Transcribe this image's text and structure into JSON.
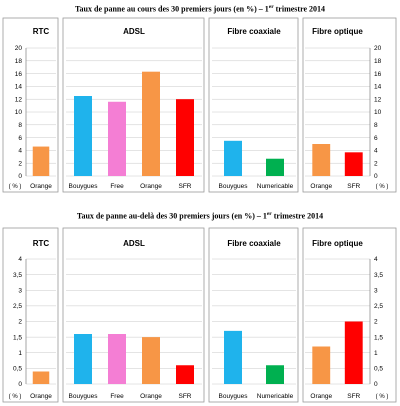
{
  "chart_data": [
    {
      "type": "bar",
      "title_main": "Taux de panne au cours des 30 premiers jours (en %) – 1",
      "title_sup": "er",
      "title_end": " trimestre 2014",
      "ylim": [
        0,
        20
      ],
      "yticks": [
        "0",
        "2",
        "4",
        "6",
        "8",
        "10",
        "12",
        "14",
        "16",
        "18",
        "20"
      ],
      "unit": "( % )",
      "panels": [
        {
          "title": "RTC",
          "categories": [
            "Orange"
          ],
          "values": [
            4.6
          ],
          "colors": [
            "#f79646"
          ]
        },
        {
          "title": "ADSL",
          "categories": [
            "Bouygues",
            "Free",
            "Orange",
            "SFR"
          ],
          "values": [
            12.5,
            11.6,
            16.3,
            12.0
          ],
          "colors": [
            "#1fb3ec",
            "#f47ed4",
            "#f79646",
            "#ff0000"
          ]
        },
        {
          "title": "Fibre coaxiale",
          "categories": [
            "Bouygues",
            "Numericable"
          ],
          "values": [
            5.5,
            2.7
          ],
          "colors": [
            "#1fb3ec",
            "#00b050"
          ]
        },
        {
          "title": "Fibre optique",
          "categories": [
            "Orange",
            "SFR"
          ],
          "values": [
            5.0,
            3.7
          ],
          "colors": [
            "#f79646",
            "#ff0000"
          ]
        }
      ]
    },
    {
      "type": "bar",
      "title_main": "Taux de panne au-delà des 30 premiers jours (en %) – 1",
      "title_sup": "er",
      "title_end": " trimestre 2014",
      "ylim": [
        0,
        4
      ],
      "yticks": [
        "0",
        "0,5",
        "1",
        "1,5",
        "2",
        "2,5",
        "3",
        "3,5",
        "4"
      ],
      "unit": "( % )",
      "panels": [
        {
          "title": "RTC",
          "categories": [
            "Orange"
          ],
          "values": [
            0.4
          ],
          "colors": [
            "#f79646"
          ]
        },
        {
          "title": "ADSL",
          "categories": [
            "Bouygues",
            "Free",
            "Orange",
            "SFR"
          ],
          "values": [
            1.6,
            1.6,
            1.5,
            0.6
          ],
          "colors": [
            "#1fb3ec",
            "#f47ed4",
            "#f79646",
            "#ff0000"
          ]
        },
        {
          "title": "Fibre coaxiale",
          "categories": [
            "Bouygues",
            "Numericable"
          ],
          "values": [
            1.7,
            0.6
          ],
          "colors": [
            "#1fb3ec",
            "#00b050"
          ]
        },
        {
          "title": "Fibre optique",
          "categories": [
            "Orange",
            "SFR"
          ],
          "values": [
            1.2,
            2.0
          ],
          "colors": [
            "#f79646",
            "#ff0000"
          ]
        }
      ]
    }
  ]
}
